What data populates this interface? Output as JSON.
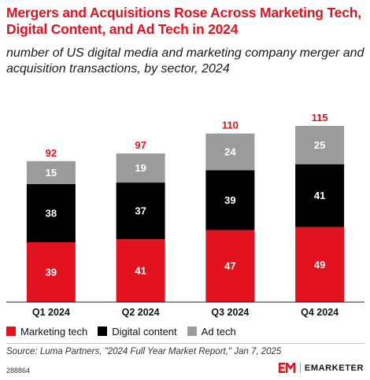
{
  "title": "Mergers and Acquisitions Rose Across Marketing Tech, Digital Content, and Ad Tech in 2024",
  "subtitle": "number of US digital media and marketing company merger and acquisition transactions, by sector, 2024",
  "chart_data": {
    "type": "bar",
    "stacked": true,
    "categories": [
      "Q1 2024",
      "Q2 2024",
      "Q3 2024",
      "Q4 2024"
    ],
    "series": [
      {
        "name": "Marketing tech",
        "values": [
          39,
          41,
          47,
          49
        ],
        "color": "#e2131e",
        "label_color": "#ffffff"
      },
      {
        "name": "Digital content",
        "values": [
          38,
          37,
          39,
          41
        ],
        "color": "#000000",
        "label_color": "#ffffff"
      },
      {
        "name": "Ad tech",
        "values": [
          15,
          19,
          24,
          25
        ],
        "color": "#9b9b9b",
        "label_color": "#ffffff"
      }
    ],
    "totals": [
      92,
      97,
      110,
      115
    ],
    "total_label_color": "#e2131e",
    "ylim": [
      0,
      120
    ],
    "grid": false,
    "legend_position": "bottom-left"
  },
  "source": "Source: Luma Partners, \"2024 Full Year Market Report,\" Jan 7, 2025",
  "chart_id": "288864",
  "brand": {
    "name": "EMARKETER",
    "logo_mark": "EM"
  }
}
